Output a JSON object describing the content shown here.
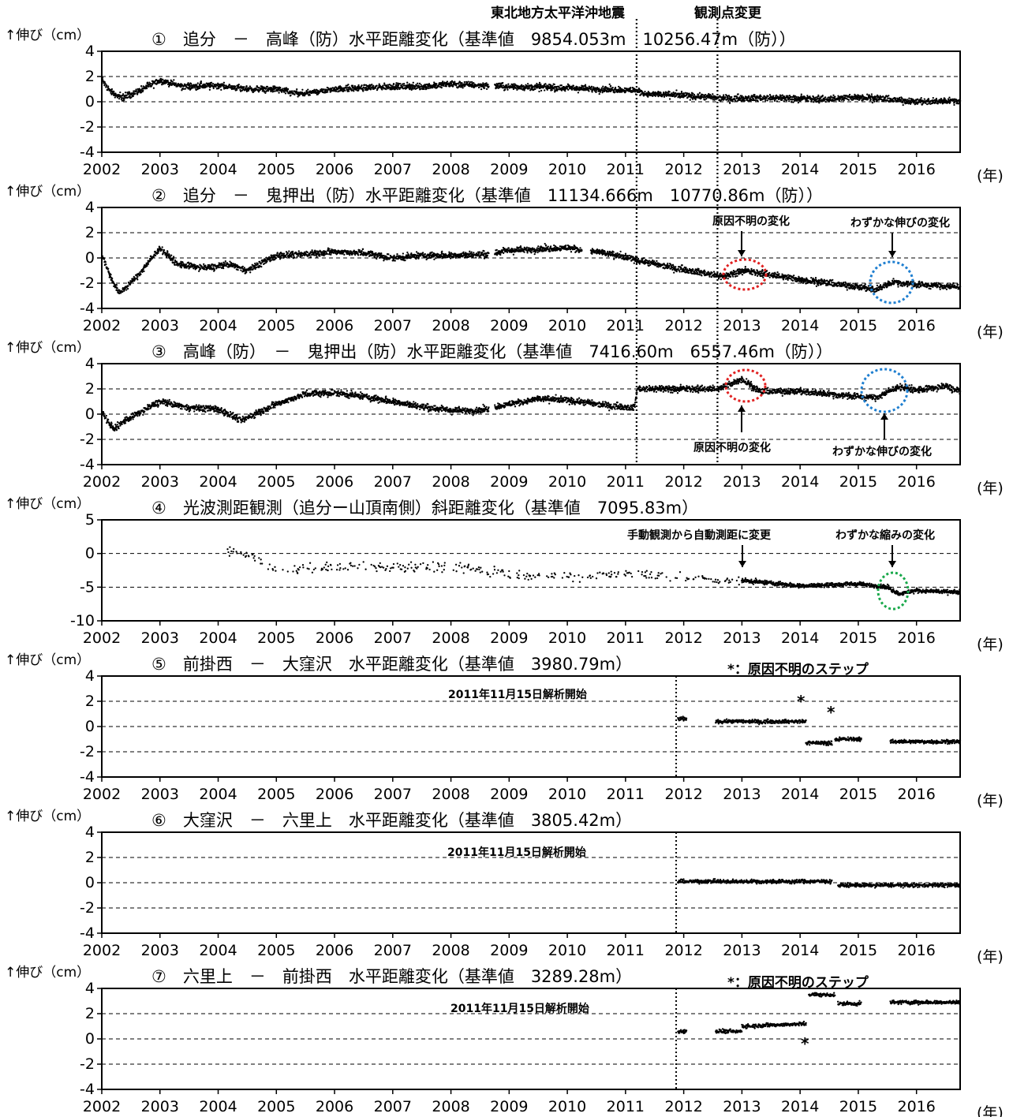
{
  "header": {
    "quake_label": "東北地方太平洋沖地震",
    "station_label": "観測点変更",
    "unit_label": "↑伸び（cm）",
    "year_label": "(年)"
  },
  "colors": {
    "red": "#e02020",
    "blue": "#1f7fd0",
    "green": "#18a84a",
    "data": "#000000"
  },
  "notes": {
    "unknown_change": "原因不明の変化",
    "slight_extension": "わずかな伸びの変化",
    "slight_shrink": "わずかな縮みの変化",
    "manual_to_auto": "手動観測から自動測距に変更",
    "analysis_start": "2011年11月15日解析開始",
    "step_note": "*：原因不明のステップ",
    "asterisk": "*"
  },
  "chart_data": [
    {
      "id": "p1",
      "type": "scatter",
      "title": "①　追分　－　高峰（防）水平距離変化（基準値　9854.053m　10256.47m（防））",
      "ylabel": "↑伸び（cm）",
      "xlabel": "(年)",
      "xlim": [
        2002,
        2016.75
      ],
      "ylim": [
        -4,
        4
      ],
      "yticks": [
        -4,
        -2,
        0,
        2,
        4
      ],
      "xticks": [
        2002,
        2003,
        2004,
        2005,
        2006,
        2007,
        2008,
        2009,
        2010,
        2011,
        2012,
        2013,
        2014,
        2015,
        2016
      ],
      "dashed_grid": [
        -2,
        0,
        2
      ],
      "event_lines": [
        2011.19,
        2012.58
      ],
      "series": {
        "start": 2002.0,
        "end": 2016.75,
        "gaps": [
          [
            2008.65,
            2008.75
          ]
        ],
        "trend": [
          [
            2002.0,
            1.8
          ],
          [
            2002.15,
            0.8
          ],
          [
            2002.35,
            0.3
          ],
          [
            2002.7,
            1.0
          ],
          [
            2003.0,
            1.7
          ],
          [
            2003.4,
            1.2
          ],
          [
            2004.0,
            1.3
          ],
          [
            2004.5,
            1.0
          ],
          [
            2005.0,
            1.0
          ],
          [
            2005.4,
            0.6
          ],
          [
            2006.0,
            1.0
          ],
          [
            2007.0,
            1.2
          ],
          [
            2007.5,
            1.2
          ],
          [
            2008.0,
            1.4
          ],
          [
            2009.0,
            1.2
          ],
          [
            2010.0,
            1.1
          ],
          [
            2011.15,
            0.9
          ],
          [
            2011.4,
            0.6
          ],
          [
            2012.0,
            0.5
          ],
          [
            2012.6,
            0.3
          ],
          [
            2013.5,
            0.3
          ],
          [
            2014.5,
            0.2
          ],
          [
            2015.0,
            0.4
          ],
          [
            2015.5,
            0.2
          ],
          [
            2016.0,
            0.0
          ],
          [
            2016.75,
            0.1
          ]
        ]
      }
    },
    {
      "id": "p2",
      "type": "scatter",
      "title": "②　追分　－　鬼押出（防）水平距離変化（基準値　11134.666m　10770.86m（防））",
      "ylabel": "↑伸び（cm）",
      "xlabel": "(年)",
      "xlim": [
        2002,
        2016.75
      ],
      "ylim": [
        -4,
        4
      ],
      "yticks": [
        -4,
        -2,
        0,
        2,
        4
      ],
      "xticks": [
        2002,
        2003,
        2004,
        2005,
        2006,
        2007,
        2008,
        2009,
        2010,
        2011,
        2012,
        2013,
        2014,
        2015,
        2016
      ],
      "dashed_grid": [
        -2,
        0,
        2
      ],
      "event_lines": [
        2011.19,
        2012.58
      ],
      "series": {
        "start": 2002.0,
        "end": 2016.75,
        "gaps": [
          [
            2008.65,
            2008.75
          ],
          [
            2010.25,
            2010.4
          ]
        ],
        "trend": [
          [
            2002.0,
            0.3
          ],
          [
            2002.15,
            -1.5
          ],
          [
            2002.3,
            -2.8
          ],
          [
            2002.6,
            -1.5
          ],
          [
            2003.0,
            0.8
          ],
          [
            2003.3,
            -0.5
          ],
          [
            2003.8,
            -0.8
          ],
          [
            2004.2,
            -0.5
          ],
          [
            2004.5,
            -1.0
          ],
          [
            2005.0,
            0.2
          ],
          [
            2005.5,
            0.3
          ],
          [
            2006.0,
            0.5
          ],
          [
            2006.5,
            0.4
          ],
          [
            2007.0,
            0.0
          ],
          [
            2007.5,
            0.2
          ],
          [
            2008.0,
            0.2
          ],
          [
            2008.6,
            0.3
          ],
          [
            2009.0,
            0.6
          ],
          [
            2010.0,
            0.8
          ],
          [
            2010.5,
            0.5
          ],
          [
            2011.15,
            -0.1
          ],
          [
            2011.4,
            -0.4
          ],
          [
            2012.0,
            -0.9
          ],
          [
            2012.7,
            -1.5
          ],
          [
            2013.0,
            -1.0
          ],
          [
            2013.3,
            -1.2
          ],
          [
            2014.0,
            -1.7
          ],
          [
            2015.0,
            -2.3
          ],
          [
            2015.3,
            -2.5
          ],
          [
            2015.6,
            -1.9
          ],
          [
            2016.0,
            -2.1
          ],
          [
            2016.75,
            -2.3
          ]
        ]
      }
    },
    {
      "id": "p3",
      "type": "scatter",
      "title": "③　高峰（防）　－　鬼押出（防）水平距離変化（基準値　7416.60m　6557.46m（防））",
      "ylabel": "↑伸び（cm）",
      "xlabel": "(年)",
      "xlim": [
        2002,
        2016.75
      ],
      "ylim": [
        -4,
        4
      ],
      "yticks": [
        -4,
        -2,
        0,
        2,
        4
      ],
      "xticks": [
        2002,
        2003,
        2004,
        2005,
        2006,
        2007,
        2008,
        2009,
        2010,
        2011,
        2012,
        2013,
        2014,
        2015,
        2016
      ],
      "dashed_grid": [
        -2,
        0,
        2
      ],
      "event_lines": [
        2011.19,
        2012.58
      ],
      "series": {
        "start": 2002.0,
        "end": 2016.75,
        "gaps": [
          [
            2008.65,
            2008.75
          ]
        ],
        "trend": [
          [
            2002.0,
            0.2
          ],
          [
            2002.2,
            -1.2
          ],
          [
            2002.4,
            -0.5
          ],
          [
            2003.0,
            1.0
          ],
          [
            2003.5,
            0.5
          ],
          [
            2004.0,
            0.4
          ],
          [
            2004.4,
            -0.5
          ],
          [
            2005.0,
            0.8
          ],
          [
            2005.5,
            1.6
          ],
          [
            2006.0,
            1.7
          ],
          [
            2006.5,
            1.4
          ],
          [
            2007.0,
            1.0
          ],
          [
            2007.5,
            0.6
          ],
          [
            2008.0,
            0.3
          ],
          [
            2008.5,
            0.3
          ],
          [
            2009.0,
            0.8
          ],
          [
            2009.5,
            1.2
          ],
          [
            2010.0,
            1.1
          ],
          [
            2010.5,
            0.8
          ],
          [
            2011.15,
            0.5
          ],
          [
            2011.2,
            2.0
          ],
          [
            2012.0,
            2.0
          ],
          [
            2012.6,
            2.0
          ],
          [
            2013.0,
            2.8
          ],
          [
            2013.3,
            1.8
          ],
          [
            2014.0,
            1.8
          ],
          [
            2015.0,
            1.4
          ],
          [
            2015.3,
            1.3
          ],
          [
            2015.7,
            2.2
          ],
          [
            2016.0,
            1.9
          ],
          [
            2016.5,
            2.2
          ],
          [
            2016.75,
            1.8
          ]
        ]
      }
    },
    {
      "id": "p4",
      "type": "scatter",
      "title": "④　光波測距観測（追分ー山頂南側）斜距離変化（基準値　7095.83m）",
      "ylabel": "↑伸び（cm）",
      "xlabel": "(年)",
      "xlim": [
        2002,
        2016.75
      ],
      "ylim": [
        -10,
        5
      ],
      "yticks": [
        -10,
        -5,
        0,
        5
      ],
      "xticks": [
        2002,
        2003,
        2004,
        2005,
        2006,
        2007,
        2008,
        2009,
        2010,
        2011,
        2012,
        2013,
        2014,
        2015,
        2016
      ],
      "dashed_grid": [
        -5,
        0
      ],
      "series": {
        "start": 2004.15,
        "end": 2016.75,
        "sparse_until": 2013.0,
        "trend": [
          [
            2004.15,
            0.3
          ],
          [
            2004.5,
            0.0
          ],
          [
            2004.8,
            -1.5
          ],
          [
            2005.0,
            -2.5
          ],
          [
            2006.0,
            -2.0
          ],
          [
            2007.0,
            -2.0
          ],
          [
            2008.0,
            -2.0
          ],
          [
            2009.0,
            -3.0
          ],
          [
            2010.0,
            -3.5
          ],
          [
            2011.0,
            -3.0
          ],
          [
            2012.0,
            -3.5
          ],
          [
            2012.7,
            -4.0
          ],
          [
            2013.0,
            -4.0
          ],
          [
            2014.0,
            -4.8
          ],
          [
            2015.0,
            -4.5
          ],
          [
            2015.5,
            -5.0
          ],
          [
            2015.7,
            -6.0
          ],
          [
            2016.0,
            -5.5
          ],
          [
            2016.75,
            -5.8
          ]
        ]
      }
    },
    {
      "id": "p5",
      "type": "scatter",
      "title": "⑤　前掛西　－　大窪沢　水平距離変化（基準値　3980.79m）",
      "ylabel": "↑伸び（cm）",
      "xlabel": "(年)",
      "xlim": [
        2002,
        2016.75
      ],
      "ylim": [
        -4,
        4
      ],
      "yticks": [
        -4,
        -2,
        0,
        2,
        4
      ],
      "xticks": [
        2002,
        2003,
        2004,
        2005,
        2006,
        2007,
        2008,
        2009,
        2010,
        2011,
        2012,
        2013,
        2014,
        2015,
        2016
      ],
      "dashed_grid": [
        -2,
        0,
        2
      ],
      "event_lines": [
        2011.87
      ],
      "series": {
        "segments": [
          {
            "start": 2011.9,
            "end": 2012.05,
            "value": 0.6
          },
          {
            "start": 2012.55,
            "end": 2014.1,
            "value": 0.4
          },
          {
            "start": 2014.1,
            "end": 2014.55,
            "value": -1.3
          },
          {
            "start": 2014.6,
            "end": 2015.05,
            "value": -1.0
          },
          {
            "start": 2015.55,
            "end": 2016.75,
            "value": -1.2
          }
        ]
      }
    },
    {
      "id": "p6",
      "type": "scatter",
      "title": "⑥　大窪沢　－　六里上　水平距離変化（基準値　3805.42m）",
      "ylabel": "↑伸び（cm）",
      "xlabel": "(年)",
      "xlim": [
        2002,
        2016.75
      ],
      "ylim": [
        -4,
        4
      ],
      "yticks": [
        -4,
        -2,
        0,
        2,
        4
      ],
      "xticks": [
        2002,
        2003,
        2004,
        2005,
        2006,
        2007,
        2008,
        2009,
        2010,
        2011,
        2012,
        2013,
        2014,
        2015,
        2016
      ],
      "dashed_grid": [
        -2,
        0,
        2
      ],
      "event_lines": [
        2011.87
      ],
      "series": {
        "segments": [
          {
            "start": 2011.9,
            "end": 2014.55,
            "value": 0.1
          },
          {
            "start": 2014.65,
            "end": 2016.75,
            "value": -0.2
          }
        ]
      }
    },
    {
      "id": "p7",
      "type": "scatter",
      "title": "⑦　六里上　－　前掛西　水平距離変化（基準値　3289.28m）",
      "ylabel": "↑伸び（cm）",
      "xlabel": "(年)",
      "xlim": [
        2002,
        2016.75
      ],
      "ylim": [
        -4,
        4
      ],
      "yticks": [
        -4,
        -2,
        0,
        2,
        4
      ],
      "xticks": [
        2002,
        2003,
        2004,
        2005,
        2006,
        2007,
        2008,
        2009,
        2010,
        2011,
        2012,
        2013,
        2014,
        2015,
        2016
      ],
      "dashed_grid": [
        -2,
        0,
        2
      ],
      "event_lines": [
        2011.87
      ],
      "series": {
        "segments": [
          {
            "start": 2011.9,
            "end": 2012.05,
            "value": 0.6
          },
          {
            "start": 2012.55,
            "end": 2013.0,
            "value": 0.6
          },
          {
            "start": 2013.0,
            "end": 2014.1,
            "value": 1.0,
            "end_value": 1.2
          },
          {
            "start": 2014.15,
            "end": 2014.6,
            "value": 3.5
          },
          {
            "start": 2014.65,
            "end": 2015.05,
            "value": 2.8
          },
          {
            "start": 2015.55,
            "end": 2016.75,
            "value": 2.9
          }
        ]
      }
    }
  ]
}
